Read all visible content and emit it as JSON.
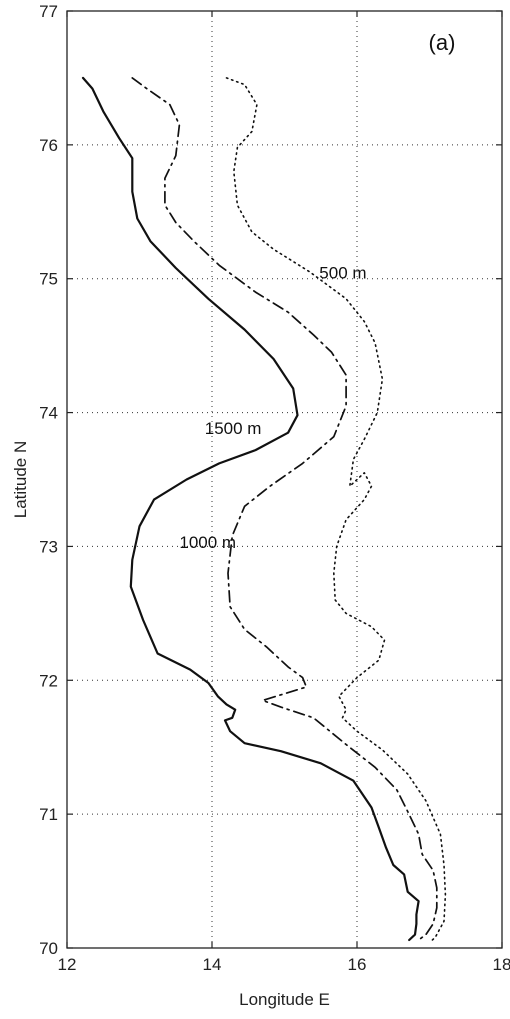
{
  "chart_data": {
    "type": "line",
    "panel_label": "(a)",
    "xlabel": "Longitude E",
    "ylabel": "Latitude N",
    "xlim": [
      12,
      18
    ],
    "ylim": [
      70,
      77
    ],
    "xticks": [
      12,
      14,
      16,
      18
    ],
    "yticks": [
      70,
      71,
      72,
      73,
      74,
      75,
      76,
      77
    ],
    "grid": true,
    "series": [
      {
        "name": "1500 m",
        "style": "solid",
        "points": [
          [
            12.22,
            76.5
          ],
          [
            12.35,
            76.42
          ],
          [
            12.5,
            76.25
          ],
          [
            12.72,
            76.05
          ],
          [
            12.9,
            75.9
          ],
          [
            12.9,
            75.65
          ],
          [
            12.97,
            75.45
          ],
          [
            13.15,
            75.28
          ],
          [
            13.5,
            75.08
          ],
          [
            13.95,
            74.85
          ],
          [
            14.45,
            74.62
          ],
          [
            14.85,
            74.4
          ],
          [
            15.12,
            74.18
          ],
          [
            15.18,
            73.98
          ],
          [
            15.05,
            73.85
          ],
          [
            14.6,
            73.72
          ],
          [
            14.1,
            73.62
          ],
          [
            13.65,
            73.5
          ],
          [
            13.2,
            73.35
          ],
          [
            13.0,
            73.15
          ],
          [
            12.9,
            72.9
          ],
          [
            12.88,
            72.7
          ],
          [
            13.05,
            72.45
          ],
          [
            13.25,
            72.2
          ],
          [
            13.7,
            72.08
          ],
          [
            13.95,
            71.98
          ],
          [
            14.08,
            71.88
          ],
          [
            14.2,
            71.82
          ],
          [
            14.32,
            71.78
          ],
          [
            14.28,
            71.72
          ],
          [
            14.18,
            71.7
          ],
          [
            14.25,
            71.62
          ],
          [
            14.45,
            71.53
          ],
          [
            14.95,
            71.47
          ],
          [
            15.5,
            71.38
          ],
          [
            15.95,
            71.25
          ],
          [
            16.2,
            71.05
          ],
          [
            16.3,
            70.9
          ],
          [
            16.4,
            70.75
          ],
          [
            16.5,
            70.62
          ],
          [
            16.65,
            70.55
          ],
          [
            16.7,
            70.42
          ],
          [
            16.85,
            70.35
          ],
          [
            16.82,
            70.25
          ],
          [
            16.82,
            70.18
          ],
          [
            16.8,
            70.1
          ],
          [
            16.72,
            70.06
          ]
        ]
      },
      {
        "name": "1000 m",
        "style": "dashdot",
        "points": [
          [
            12.9,
            76.5
          ],
          [
            13.1,
            76.42
          ],
          [
            13.42,
            76.3
          ],
          [
            13.55,
            76.15
          ],
          [
            13.5,
            75.92
          ],
          [
            13.35,
            75.75
          ],
          [
            13.35,
            75.55
          ],
          [
            13.5,
            75.42
          ],
          [
            13.75,
            75.28
          ],
          [
            14.1,
            75.1
          ],
          [
            14.6,
            74.9
          ],
          [
            15.05,
            74.75
          ],
          [
            15.4,
            74.58
          ],
          [
            15.65,
            74.45
          ],
          [
            15.85,
            74.28
          ],
          [
            15.85,
            74.05
          ],
          [
            15.68,
            73.82
          ],
          [
            15.25,
            73.62
          ],
          [
            14.8,
            73.45
          ],
          [
            14.45,
            73.3
          ],
          [
            14.28,
            73.08
          ],
          [
            14.22,
            72.8
          ],
          [
            14.25,
            72.55
          ],
          [
            14.45,
            72.38
          ],
          [
            14.75,
            72.25
          ],
          [
            15.05,
            72.1
          ],
          [
            15.25,
            72.02
          ],
          [
            15.3,
            71.95
          ],
          [
            14.7,
            71.85
          ],
          [
            14.95,
            71.8
          ],
          [
            15.4,
            71.72
          ],
          [
            15.85,
            71.52
          ],
          [
            16.25,
            71.35
          ],
          [
            16.55,
            71.18
          ],
          [
            16.7,
            71.02
          ],
          [
            16.85,
            70.85
          ],
          [
            16.9,
            70.7
          ],
          [
            17.05,
            70.58
          ],
          [
            17.1,
            70.45
          ],
          [
            17.1,
            70.3
          ],
          [
            17.05,
            70.18
          ],
          [
            16.95,
            70.1
          ],
          [
            16.85,
            70.06
          ]
        ]
      },
      {
        "name": "500 m",
        "style": "dotted",
        "points": [
          [
            14.2,
            76.5
          ],
          [
            14.45,
            76.45
          ],
          [
            14.62,
            76.3
          ],
          [
            14.55,
            76.1
          ],
          [
            14.35,
            75.98
          ],
          [
            14.3,
            75.8
          ],
          [
            14.35,
            75.55
          ],
          [
            14.55,
            75.35
          ],
          [
            14.85,
            75.22
          ],
          [
            15.35,
            75.05
          ],
          [
            15.85,
            74.85
          ],
          [
            16.1,
            74.68
          ],
          [
            16.25,
            74.52
          ],
          [
            16.35,
            74.25
          ],
          [
            16.28,
            74.0
          ],
          [
            16.1,
            73.8
          ],
          [
            15.95,
            73.65
          ],
          [
            15.9,
            73.45
          ],
          [
            16.1,
            73.55
          ],
          [
            16.2,
            73.45
          ],
          [
            16.1,
            73.35
          ],
          [
            15.85,
            73.2
          ],
          [
            15.72,
            73.0
          ],
          [
            15.68,
            72.8
          ],
          [
            15.7,
            72.6
          ],
          [
            15.85,
            72.5
          ],
          [
            16.2,
            72.4
          ],
          [
            16.38,
            72.3
          ],
          [
            16.3,
            72.15
          ],
          [
            16.0,
            72.02
          ],
          [
            15.75,
            71.88
          ],
          [
            15.85,
            71.78
          ],
          [
            15.8,
            71.72
          ],
          [
            16.0,
            71.62
          ],
          [
            16.35,
            71.48
          ],
          [
            16.7,
            71.3
          ],
          [
            16.95,
            71.1
          ],
          [
            17.15,
            70.85
          ],
          [
            17.2,
            70.62
          ],
          [
            17.22,
            70.4
          ],
          [
            17.2,
            70.2
          ],
          [
            17.08,
            70.08
          ],
          [
            17.0,
            70.04
          ]
        ]
      }
    ],
    "annotations": [
      {
        "text": "500 m",
        "x": 15.48,
        "y": 75.0
      },
      {
        "text": "1500 m",
        "x": 13.9,
        "y": 73.84
      },
      {
        "text": "1000 m",
        "x": 13.55,
        "y": 72.99
      }
    ]
  }
}
